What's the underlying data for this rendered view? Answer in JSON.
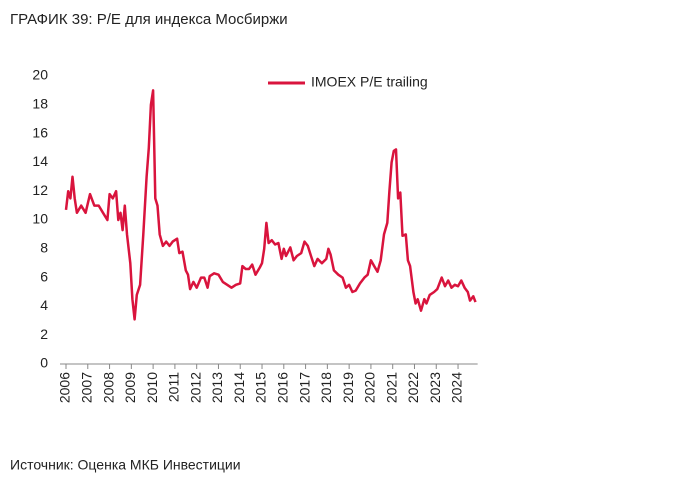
{
  "chart_data": {
    "type": "line",
    "title": "ГРАФИК 39: P/E для индекса Мосбиржи",
    "source": "Источник: Оценка МКБ Инвестиции",
    "legend": "top",
    "x": [
      2006.0,
      2006.1,
      2006.2,
      2006.3,
      2006.4,
      2006.5,
      2006.7,
      2006.9,
      2007.1,
      2007.3,
      2007.5,
      2007.7,
      2007.9,
      2008.0,
      2008.15,
      2008.3,
      2008.4,
      2008.5,
      2008.6,
      2008.7,
      2008.8,
      2008.95,
      2009.05,
      2009.15,
      2009.25,
      2009.4,
      2009.55,
      2009.7,
      2009.8,
      2009.9,
      2010.0,
      2010.1,
      2010.2,
      2010.3,
      2010.45,
      2010.6,
      2010.75,
      2010.9,
      2011.1,
      2011.2,
      2011.35,
      2011.5,
      2011.6,
      2011.7,
      2011.85,
      2012.0,
      2012.2,
      2012.35,
      2012.5,
      2012.6,
      2012.8,
      2013.0,
      2013.2,
      2013.4,
      2013.6,
      2013.8,
      2014.0,
      2014.1,
      2014.25,
      2014.4,
      2014.55,
      2014.7,
      2014.9,
      2015.0,
      2015.1,
      2015.2,
      2015.3,
      2015.45,
      2015.6,
      2015.75,
      2015.9,
      2016.0,
      2016.1,
      2016.3,
      2016.45,
      2016.6,
      2016.8,
      2016.95,
      2017.1,
      2017.25,
      2017.4,
      2017.55,
      2017.75,
      2017.95,
      2018.05,
      2018.15,
      2018.3,
      2018.5,
      2018.7,
      2018.85,
      2019.0,
      2019.15,
      2019.3,
      2019.5,
      2019.7,
      2019.85,
      2020.0,
      2020.15,
      2020.3,
      2020.45,
      2020.6,
      2020.75,
      2020.85,
      2020.95,
      2021.05,
      2021.15,
      2021.25,
      2021.35,
      2021.45,
      2021.6,
      2021.7,
      2021.8,
      2021.95,
      2022.05,
      2022.15,
      2022.3,
      2022.45,
      2022.55,
      2022.7,
      2022.9,
      2023.05,
      2023.25,
      2023.4,
      2023.55,
      2023.7,
      2023.85,
      2024.0,
      2024.15,
      2024.3,
      2024.45,
      2024.55,
      2024.7,
      2024.8
    ],
    "series": [
      {
        "name": "IMOEX P/E trailing",
        "color": "#d9143d",
        "values": [
          10.7,
          12.0,
          11.5,
          13.0,
          11.5,
          10.5,
          11.0,
          10.5,
          11.8,
          11.0,
          11.0,
          10.5,
          10.0,
          11.8,
          11.5,
          12.0,
          10.0,
          10.5,
          9.3,
          11.0,
          9.0,
          7.0,
          4.5,
          3.1,
          4.8,
          5.5,
          9.0,
          13.0,
          15.0,
          18.0,
          19.0,
          11.5,
          11.0,
          9.0,
          8.2,
          8.5,
          8.2,
          8.5,
          8.7,
          7.7,
          7.8,
          6.5,
          6.2,
          5.2,
          5.7,
          5.3,
          6.0,
          6.0,
          5.3,
          6.1,
          6.3,
          6.2,
          5.7,
          5.5,
          5.3,
          5.5,
          5.6,
          6.8,
          6.6,
          6.6,
          6.9,
          6.2,
          6.7,
          7.0,
          8.0,
          9.8,
          8.4,
          8.6,
          8.3,
          8.4,
          7.3,
          8.0,
          7.5,
          8.1,
          7.2,
          7.5,
          7.7,
          8.5,
          8.2,
          7.5,
          6.8,
          7.3,
          7.0,
          7.3,
          8.0,
          7.6,
          6.5,
          6.2,
          6.0,
          5.3,
          5.5,
          5.0,
          5.1,
          5.6,
          6.0,
          6.2,
          7.2,
          6.8,
          6.4,
          7.2,
          9.0,
          9.8,
          12.0,
          14.0,
          14.8,
          14.9,
          11.5,
          11.9,
          8.9,
          9.0,
          7.2,
          6.8,
          5.0,
          4.2,
          4.5,
          3.7,
          4.5,
          4.2,
          4.8,
          5.0,
          5.2,
          6.0,
          5.4,
          5.8,
          5.3,
          5.5,
          5.4,
          5.8,
          5.3,
          5.0,
          4.4,
          4.7,
          4.3
        ]
      }
    ],
    "xlim": [
      2006,
      2024.9
    ],
    "xticks": [
      2006,
      2007,
      2008,
      2009,
      2010,
      2011,
      2012,
      2013,
      2014,
      2015,
      2016,
      2017,
      2018,
      2019,
      2020,
      2021,
      2022,
      2023,
      2024
    ],
    "ylim": [
      0,
      20
    ],
    "yticks": [
      0,
      2,
      4,
      6,
      8,
      10,
      12,
      14,
      16,
      18,
      20
    ]
  }
}
